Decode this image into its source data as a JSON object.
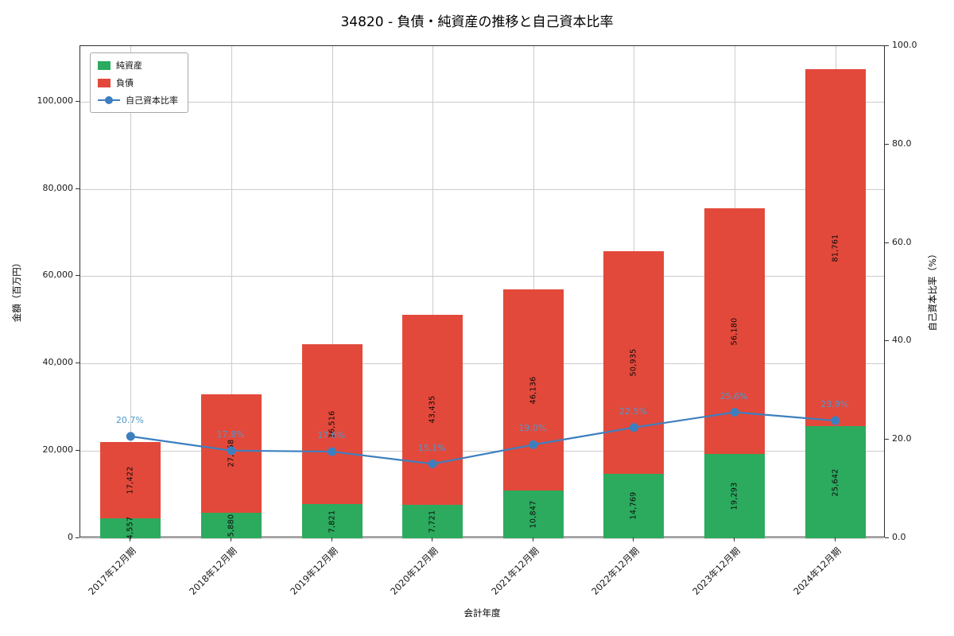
{
  "chart_data": {
    "type": "bar",
    "stacked": true,
    "title": "34820 - 負債・純資産の推移と自己資本比率",
    "xlabel": "会計年度",
    "ylabel_left": "金額（百万円）",
    "ylabel_right": "自己資本比率（%）",
    "categories": [
      "2017年12月期",
      "2018年12月期",
      "2019年12月期",
      "2020年12月期",
      "2021年12月期",
      "2022年12月期",
      "2023年12月期",
      "2024年12月期"
    ],
    "series": [
      {
        "name": "純資産",
        "type": "bar",
        "color": "#2caa5e",
        "values": [
          4557,
          5880,
          7821,
          7721,
          10847,
          14769,
          19293,
          25642
        ],
        "labels": [
          "4,557",
          "5,880",
          "7,821",
          "7,721",
          "10,847",
          "14,769",
          "19,293",
          "25,642"
        ]
      },
      {
        "name": "負債",
        "type": "bar",
        "color": "#e2493b",
        "values": [
          17422,
          27158,
          36516,
          43435,
          46136,
          50935,
          56180,
          81761
        ],
        "labels": [
          "17,422",
          "27,158",
          "36,516",
          "43,435",
          "46,136",
          "50,935",
          "56,180",
          "81,761"
        ]
      },
      {
        "name": "自己資本比率",
        "type": "line",
        "axis": "right",
        "color": "#3d7fbe",
        "label_color": "#4e97cc",
        "values": [
          20.7,
          17.8,
          17.6,
          15.1,
          19.0,
          22.5,
          25.6,
          23.9
        ],
        "labels": [
          "20.7%",
          "17.8%",
          "17.6%",
          "15.1%",
          "19.0%",
          "22.5%",
          "25.6%",
          "23.9%"
        ]
      }
    ],
    "ylim_left": [
      0,
      112700
    ],
    "ylim_right": [
      0,
      100
    ],
    "yticks_left": {
      "values": [
        0,
        20000,
        40000,
        60000,
        80000,
        100000
      ],
      "labels": [
        "0",
        "20,000",
        "40,000",
        "60,000",
        "80,000",
        "100,000"
      ]
    },
    "yticks_right": {
      "values": [
        0,
        20,
        40,
        60,
        80,
        100
      ],
      "labels": [
        "0.0",
        "20.0",
        "40.0",
        "60.0",
        "80.0",
        "100.0"
      ]
    },
    "grid": true,
    "legend": {
      "position": "upper left"
    }
  }
}
